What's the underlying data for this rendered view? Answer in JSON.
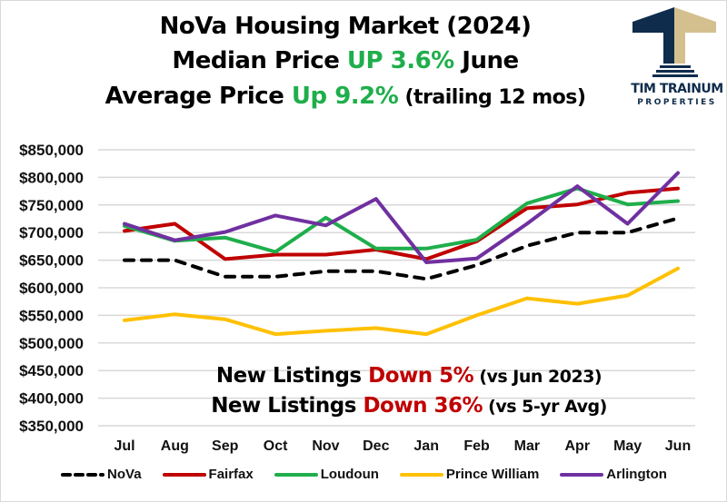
{
  "title": {
    "line1": "NoVa Housing Market (2024)",
    "line2_prefix": "Median Price ",
    "line2_highlight": "UP 3.6%",
    "line2_suffix": " June",
    "line3_prefix": "Average Price ",
    "line3_highlight": "Up 9.2%",
    "line3_suffix": " (trailing 12 mos)"
  },
  "logo": {
    "name": "TIM TRAINUM",
    "subtitle": "PROPERTIES",
    "colors": {
      "navy": "#0f2c4c",
      "gold": "#d4c08e"
    }
  },
  "annotations": [
    {
      "prefix": "New Listings ",
      "highlight": "Down 5%",
      "suffix": " (vs Jun 2023)"
    },
    {
      "prefix": "New Listings ",
      "highlight": "Down 36%",
      "suffix": " (vs 5-yr Avg)"
    }
  ],
  "colors": {
    "up": "#1fae4b",
    "down": "#c00000"
  },
  "chart_data": {
    "type": "line",
    "title": "NoVa Housing Market (2024)",
    "xlabel": "",
    "ylabel": "",
    "categories": [
      "Jul",
      "Aug",
      "Sep",
      "Oct",
      "Nov",
      "Dec",
      "Jan",
      "Feb",
      "Mar",
      "Apr",
      "May",
      "Jun"
    ],
    "ylim": [
      350000,
      850000
    ],
    "yticks": [
      850000,
      800000,
      750000,
      700000,
      650000,
      600000,
      550000,
      500000,
      450000,
      400000,
      350000
    ],
    "ytick_labels": [
      "$850,000",
      "$800,000",
      "$750,000",
      "$700,000",
      "$650,000",
      "$600,000",
      "$550,000",
      "$500,000",
      "$450,000",
      "$400,000",
      "$350,000"
    ],
    "grid": true,
    "legend_position": "bottom",
    "series": [
      {
        "name": "NoVa",
        "color": "#000000",
        "dashed": true,
        "values": [
          650000,
          650000,
          620000,
          620000,
          630000,
          630000,
          616000,
          641000,
          676000,
          700000,
          700000,
          726000
        ]
      },
      {
        "name": "Fairfax",
        "color": "#c00000",
        "dashed": false,
        "values": [
          703000,
          716000,
          652000,
          660000,
          660000,
          669000,
          652000,
          684000,
          744000,
          751000,
          772000,
          780000
        ]
      },
      {
        "name": "Loudoun",
        "color": "#1fae4b",
        "dashed": false,
        "values": [
          712000,
          685000,
          691000,
          665000,
          727000,
          671000,
          671000,
          687000,
          753000,
          780000,
          751000,
          757000
        ]
      },
      {
        "name": "Prince William",
        "color": "#ffc000",
        "dashed": false,
        "values": [
          541000,
          552000,
          543000,
          516000,
          522000,
          527000,
          516000,
          550000,
          581000,
          571000,
          586000,
          635000
        ]
      },
      {
        "name": "Arlington",
        "color": "#7030a0",
        "dashed": false,
        "values": [
          716000,
          686000,
          701000,
          731000,
          713000,
          761000,
          646000,
          653000,
          716000,
          784000,
          716000,
          808000
        ]
      }
    ]
  }
}
